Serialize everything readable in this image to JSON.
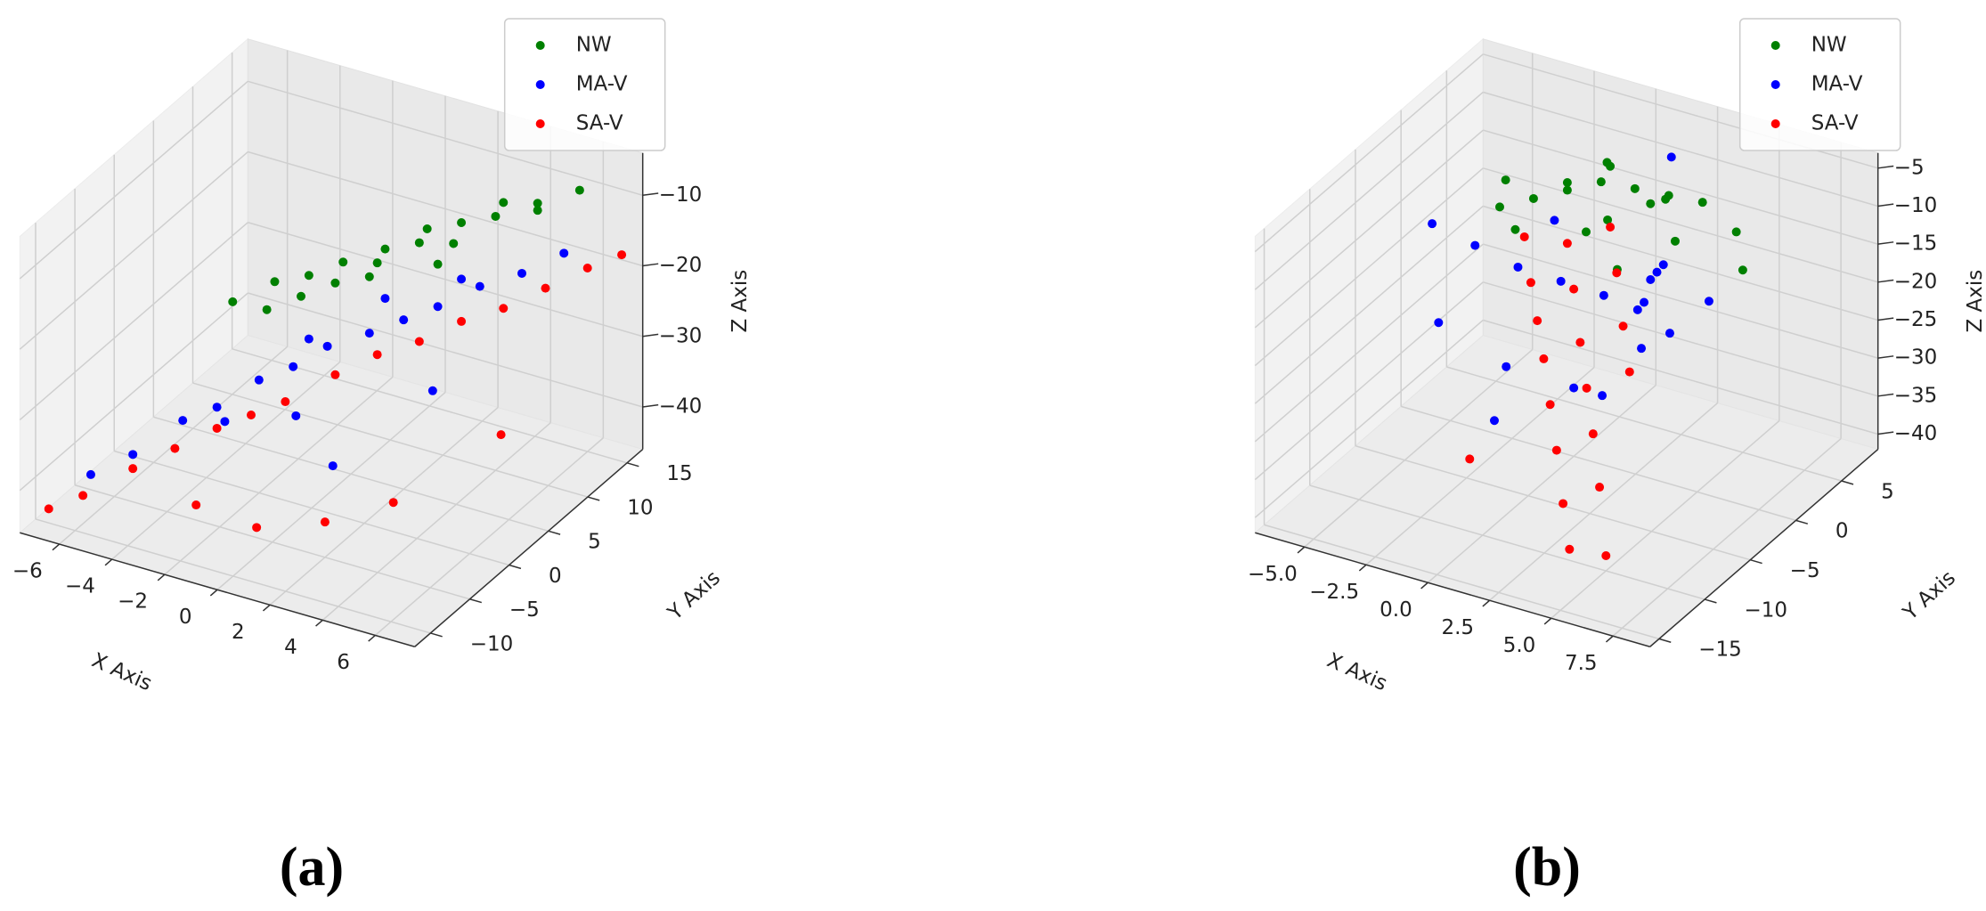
{
  "chart_data": [
    {
      "type": "scatter3d",
      "caption": "(a)",
      "xlabel": "X Axis",
      "ylabel": "Y Axis",
      "zlabel": "Z Axis",
      "legend": "upper right",
      "xlim": [
        -7.5,
        7.5
      ],
      "ylim": [
        -12,
        17
      ],
      "zlim": [
        -46,
        -4
      ],
      "xticks": [
        {
          "value": -6,
          "label": "−6"
        },
        {
          "value": -4,
          "label": "−4"
        },
        {
          "value": -2,
          "label": "−2"
        },
        0,
        2,
        4,
        6
      ],
      "yticks": [
        {
          "value": -10,
          "label": "−10"
        },
        {
          "value": -5,
          "label": "−5"
        },
        0,
        5,
        10,
        15
      ],
      "zticks": [
        {
          "value": -40,
          "label": "−40"
        },
        {
          "value": -30,
          "label": "−30"
        },
        {
          "value": -20,
          "label": "−20"
        },
        {
          "value": -10,
          "label": "−10"
        }
      ],
      "series": [
        {
          "name": "NW",
          "color": "#008000",
          "x": [
            -3,
            -2,
            -1,
            0,
            1,
            2,
            3,
            4,
            5,
            6,
            -2,
            0,
            1,
            2,
            3,
            4,
            -1,
            1,
            3,
            5
          ],
          "y": [
            0,
            2,
            3,
            4,
            6,
            7,
            9,
            10,
            12,
            14,
            1,
            3,
            5,
            8,
            8,
            11,
            2,
            4,
            6,
            12
          ],
          "z": [
            -20,
            -18,
            -17,
            -15,
            -14,
            -13,
            -11,
            -10,
            -9,
            -8,
            -21,
            -17,
            -15,
            -12,
            -13,
            -9,
            -19,
            -16,
            -14,
            -10
          ]
        },
        {
          "name": "MA-V",
          "color": "#0000ff",
          "x": [
            -6,
            -5,
            -4,
            -3,
            -2,
            -1,
            0,
            1,
            2,
            3,
            4,
            5,
            6,
            -3,
            -1,
            1,
            2,
            3,
            0,
            4
          ],
          "y": [
            -8,
            -6,
            -3,
            -2,
            0,
            1,
            2,
            4,
            5,
            6,
            8,
            10,
            12,
            -1,
            3,
            6,
            -4,
            9,
            -2,
            2
          ],
          "z": [
            -40,
            -38,
            -35,
            -33,
            -30,
            -28,
            -25,
            -24,
            -22,
            -20,
            -18,
            -17,
            -15,
            -36,
            -26,
            -21,
            -34,
            -19,
            -31,
            -27
          ]
        },
        {
          "name": "SA-V",
          "color": "#ff0000",
          "x": [
            -7,
            -6,
            -5,
            -4,
            -3,
            -2,
            -1,
            0,
            1,
            2,
            3,
            4,
            5,
            6,
            7,
            -2,
            0,
            2,
            4,
            6
          ],
          "y": [
            -10,
            -9,
            -6,
            -4,
            -2,
            -1,
            0,
            3,
            5,
            7,
            9,
            11,
            13,
            15,
            16,
            -8,
            -7,
            -5,
            -3,
            4
          ],
          "z": [
            -44,
            -42,
            -40,
            -38,
            -36,
            -34,
            -32,
            -30,
            -28,
            -27,
            -25,
            -24,
            -22,
            -20,
            -18,
            -40,
            -42,
            -41,
            -38,
            -33
          ]
        }
      ]
    },
    {
      "type": "scatter3d",
      "caption": "(b)",
      "xlabel": "X Axis",
      "ylabel": "Y Axis",
      "zlabel": "Z Axis",
      "legend": "upper right",
      "xlim": [
        -7,
        9
      ],
      "ylim": [
        -16,
        9
      ],
      "zlim": [
        -42,
        -3
      ],
      "xticks": [
        {
          "value": -5,
          "label": "−5.0"
        },
        {
          "value": -2.5,
          "label": "−2.5"
        },
        {
          "value": 0,
          "label": "0.0"
        },
        2.5,
        {
          "value": 5,
          "label": "5.0"
        },
        7.5
      ],
      "yticks": [
        {
          "value": -15,
          "label": "−15"
        },
        {
          "value": -10,
          "label": "−10"
        },
        {
          "value": -5,
          "label": "−5"
        },
        0,
        5
      ],
      "zticks": [
        {
          "value": -40,
          "label": "−40"
        },
        {
          "value": -35,
          "label": "−35"
        },
        {
          "value": -30,
          "label": "−30"
        },
        {
          "value": -25,
          "label": "−25"
        },
        {
          "value": -20,
          "label": "−20"
        },
        {
          "value": -15,
          "label": "−15"
        },
        {
          "value": -10,
          "label": "−10"
        },
        {
          "value": -5,
          "label": "−5"
        }
      ],
      "series": [
        {
          "name": "NW",
          "color": "#008000",
          "x": [
            -3,
            -2,
            -1,
            0,
            1,
            2,
            3,
            -2,
            -1,
            0,
            1,
            2,
            -0.5,
            0.5,
            1.5,
            4,
            5,
            3,
            -3.5,
            2.5
          ],
          "y": [
            0,
            1,
            2,
            3,
            4,
            5,
            6,
            -1,
            2,
            4,
            1,
            3,
            5,
            0,
            6,
            7,
            5,
            3,
            2,
            -2
          ],
          "z": [
            -12,
            -11,
            -10,
            -9,
            -10,
            -11,
            -12,
            -13,
            -9,
            -8,
            -11,
            -10,
            -9,
            -12,
            -13,
            -16,
            -18,
            -14,
            -11,
            -13
          ]
        },
        {
          "name": "MA-V",
          "color": "#0000ff",
          "x": [
            -5,
            -4,
            -3,
            -2,
            -1,
            0,
            1,
            2,
            3,
            4,
            5,
            -4,
            -2,
            0,
            2,
            4,
            -3,
            1,
            3,
            -1
          ],
          "y": [
            -2,
            0,
            2,
            4,
            6,
            7,
            5,
            3,
            1,
            -1,
            -3,
            -4,
            -2,
            0,
            2,
            4,
            6,
            8,
            -5,
            -6
          ],
          "z": [
            -14,
            -18,
            -22,
            -25,
            -28,
            -30,
            -26,
            -20,
            -16,
            -12,
            -18,
            -24,
            -30,
            -33,
            -28,
            -22,
            -20,
            -10,
            -26,
            -32
          ]
        },
        {
          "name": "SA-V",
          "color": "#ff0000",
          "x": [
            -2,
            -1,
            0,
            1,
            2,
            3,
            4,
            5,
            -1,
            0,
            1,
            2,
            3,
            4,
            0,
            1,
            2,
            3,
            -2,
            5
          ],
          "y": [
            0,
            -2,
            -4,
            -6,
            -8,
            -10,
            -12,
            -14,
            2,
            0,
            -2,
            -4,
            -6,
            -8,
            4,
            2,
            0,
            -2,
            -6,
            -10
          ],
          "z": [
            -15,
            -18,
            -20,
            -22,
            -25,
            -28,
            -32,
            -35,
            -17,
            -20,
            -24,
            -27,
            -30,
            -34,
            -16,
            -19,
            -23,
            -26,
            -38,
            -40
          ]
        }
      ]
    }
  ]
}
